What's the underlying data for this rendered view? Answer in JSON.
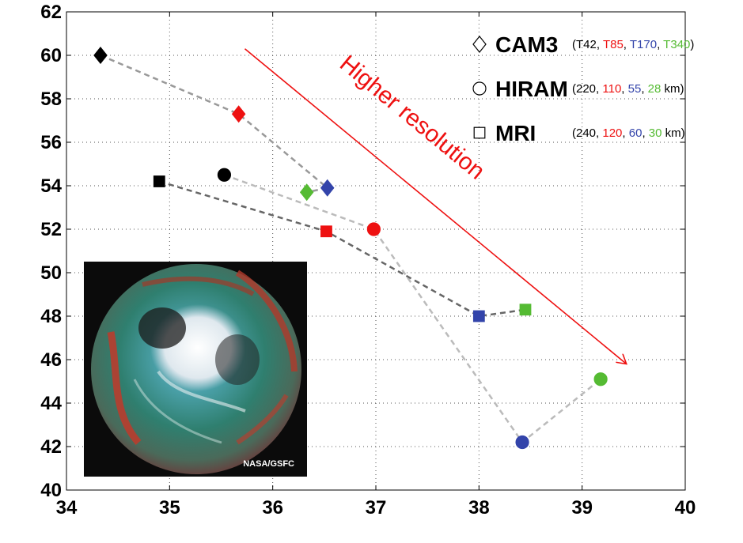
{
  "chart_data": {
    "type": "scatter",
    "xlim": [
      34,
      40
    ],
    "ylim": [
      40,
      62
    ],
    "x_ticks": [
      34,
      35,
      36,
      37,
      38,
      39,
      40
    ],
    "y_ticks": [
      40,
      42,
      44,
      46,
      48,
      50,
      52,
      54,
      56,
      58,
      60,
      62
    ],
    "x_tick_labels": [
      "34",
      "35",
      "36",
      "37",
      "38",
      "39",
      "40"
    ],
    "y_tick_labels": [
      "40",
      "42",
      "44",
      "46",
      "48",
      "50",
      "52",
      "54",
      "56",
      "58",
      "60",
      "62"
    ],
    "xlabel": "",
    "ylabel": "",
    "grid": true,
    "marker_colors": [
      "#000000",
      "#ee1111",
      "#3344aa",
      "#55bb33"
    ],
    "series": [
      {
        "marker": "diamond",
        "line_color": "#999999",
        "points": [
          {
            "x": 34.33,
            "y": 60.0,
            "color": "#000000"
          },
          {
            "x": 35.67,
            "y": 57.3,
            "color": "#ee1111"
          },
          {
            "x": 36.53,
            "y": 53.9,
            "color": "#3344aa"
          },
          {
            "x": 36.33,
            "y": 53.7,
            "color": "#55bb33"
          }
        ]
      },
      {
        "marker": "circle",
        "line_color": "#bbbbbb",
        "points": [
          {
            "x": 35.53,
            "y": 54.5,
            "color": "#000000"
          },
          {
            "x": 36.98,
            "y": 52.0,
            "color": "#ee1111"
          },
          {
            "x": 38.42,
            "y": 42.2,
            "color": "#3344aa"
          },
          {
            "x": 39.18,
            "y": 45.1,
            "color": "#55bb33"
          }
        ]
      },
      {
        "marker": "square",
        "line_color": "#666666",
        "points": [
          {
            "x": 34.9,
            "y": 54.2,
            "color": "#000000"
          },
          {
            "x": 36.52,
            "y": 51.9,
            "color": "#ee1111"
          },
          {
            "x": 38.0,
            "y": 48.0,
            "color": "#3344aa"
          },
          {
            "x": 38.45,
            "y": 48.3,
            "color": "#55bb33"
          }
        ]
      }
    ],
    "legend": {
      "placement": "top-right",
      "entries": [
        {
          "marker": "diamond",
          "model": "CAM3",
          "open": "(",
          "v1": "T42",
          "v2": "T85",
          "v3": "T170",
          "v4": "T340",
          "close": ")"
        },
        {
          "marker": "circle",
          "model": "HIRAM",
          "open": "(",
          "v1": "220",
          "v2": "110",
          "v3": "55",
          "v4": "28",
          "close": " km)"
        },
        {
          "marker": "square",
          "model": "MRI",
          "open": "(",
          "v1": "240",
          "v2": "120",
          "v3": "60",
          "v4": "30",
          "close": " km)"
        }
      ]
    },
    "annotation": {
      "text": "Higher resolution",
      "arrow_from": {
        "x": 35.73,
        "y": 60.3
      },
      "arrow_to": {
        "x": 39.43,
        "y": 45.8
      }
    },
    "inset": {
      "credit": "NASA/GSFC"
    }
  }
}
